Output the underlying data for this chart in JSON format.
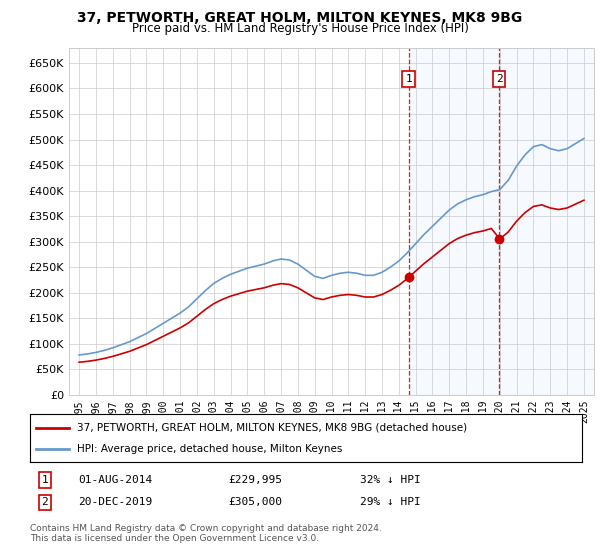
{
  "title1": "37, PETWORTH, GREAT HOLM, MILTON KEYNES, MK8 9BG",
  "title2": "Price paid vs. HM Land Registry's House Price Index (HPI)",
  "ylabel_ticks": [
    "£0",
    "£50K",
    "£100K",
    "£150K",
    "£200K",
    "£250K",
    "£300K",
    "£350K",
    "£400K",
    "£450K",
    "£500K",
    "£550K",
    "£600K",
    "£650K"
  ],
  "ylim": [
    0,
    680000
  ],
  "ytick_vals": [
    0,
    50000,
    100000,
    150000,
    200000,
    250000,
    300000,
    350000,
    400000,
    450000,
    500000,
    550000,
    600000,
    650000
  ],
  "sale1_date": "01-AUG-2014",
  "sale1_price": 229995,
  "sale1_price_str": "£229,995",
  "sale1_hpi_pct": "32% ↓ HPI",
  "sale2_date": "20-DEC-2019",
  "sale2_price": 305000,
  "sale2_price_str": "£305,000",
  "sale2_hpi_pct": "29% ↓ HPI",
  "legend_line1": "37, PETWORTH, GREAT HOLM, MILTON KEYNES, MK8 9BG (detached house)",
  "legend_line2": "HPI: Average price, detached house, Milton Keynes",
  "footnote": "Contains HM Land Registry data © Crown copyright and database right 2024.\nThis data is licensed under the Open Government Licence v3.0.",
  "hpi_color": "#6699cc",
  "price_color": "#cc0000",
  "sale1_x": 2014.583,
  "sale2_x": 2019.972,
  "background_color": "#ffffff",
  "grid_color": "#cccccc"
}
